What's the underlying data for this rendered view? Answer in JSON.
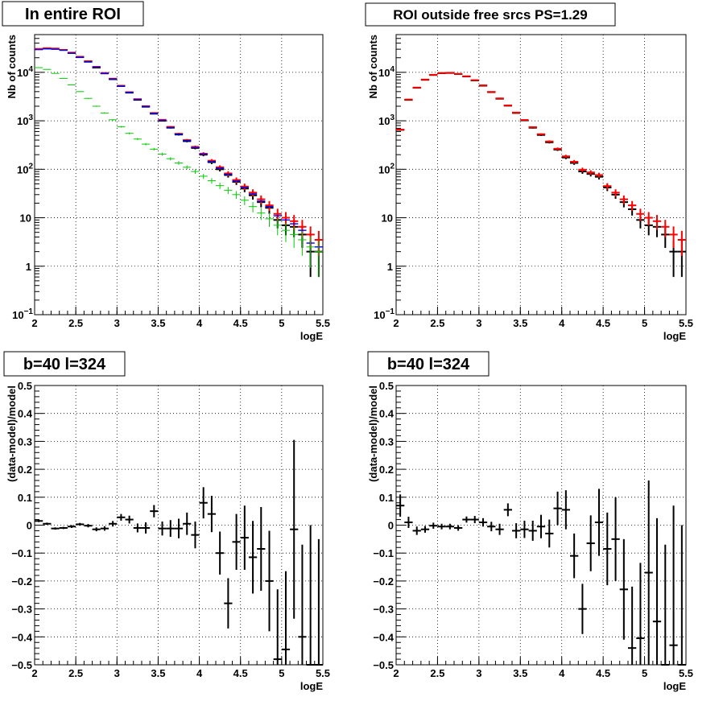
{
  "chart_data": [
    {
      "type": "scatter",
      "title": "In entire ROI",
      "xlabel": "logE",
      "ylabel": "Nb of counts",
      "xlim": [
        2,
        5.5
      ],
      "ylim": [
        0.1,
        60000
      ],
      "yscale": "log",
      "grid": true,
      "x_bin_width": 0.1,
      "series": [
        {
          "color": "#000000",
          "x": [
            2.05,
            2.15,
            2.25,
            2.35,
            2.45,
            2.55,
            2.65,
            2.75,
            2.85,
            2.95,
            3.05,
            3.15,
            3.25,
            3.35,
            3.45,
            3.55,
            3.65,
            3.75,
            3.85,
            3.95,
            4.05,
            4.15,
            4.25,
            4.35,
            4.45,
            4.55,
            4.65,
            4.75,
            4.85,
            4.95,
            5.05,
            5.15,
            5.25,
            5.35,
            5.45
          ],
          "y": [
            30000,
            31000,
            30500,
            29000,
            25000,
            20500,
            16500,
            12500,
            9500,
            7200,
            5200,
            3800,
            2700,
            1950,
            1400,
            1000,
            720,
            520,
            380,
            275,
            200,
            140,
            100,
            76,
            55,
            40,
            29,
            21,
            16,
            9,
            7,
            6.5,
            4.5,
            2,
            2
          ],
          "yerr_frac": [
            0.006,
            0.006,
            0.006,
            0.006,
            0.006,
            0.007,
            0.008,
            0.009,
            0.01,
            0.012,
            0.014,
            0.016,
            0.019,
            0.023,
            0.027,
            0.032,
            0.037,
            0.044,
            0.051,
            0.06,
            0.071,
            0.085,
            0.1,
            0.115,
            0.135,
            0.158,
            0.186,
            0.218,
            0.25,
            0.33,
            0.38,
            0.39,
            0.47,
            0.7,
            0.7
          ]
        },
        {
          "color": "#ff0000",
          "x": [
            2.05,
            2.15,
            2.25,
            2.35,
            2.45,
            2.55,
            2.65,
            2.75,
            2.85,
            2.95,
            3.05,
            3.15,
            3.25,
            3.35,
            3.45,
            3.55,
            3.65,
            3.75,
            3.85,
            3.95,
            4.05,
            4.15,
            4.25,
            4.35,
            4.45,
            4.55,
            4.65,
            4.75,
            4.85,
            4.95,
            5.05,
            5.15,
            5.25,
            5.35,
            5.45
          ],
          "y": [
            30500,
            31500,
            31000,
            29000,
            25500,
            21000,
            17000,
            13000,
            9700,
            7400,
            5300,
            3900,
            2800,
            2000,
            1450,
            1050,
            750,
            540,
            400,
            290,
            210,
            150,
            110,
            82,
            60,
            44,
            33,
            24,
            18,
            12,
            10,
            8.5,
            6.5,
            4.5,
            3.5
          ],
          "yerr_frac": [
            0.006,
            0.006,
            0.006,
            0.006,
            0.006,
            0.007,
            0.008,
            0.009,
            0.01,
            0.012,
            0.014,
            0.016,
            0.019,
            0.022,
            0.026,
            0.031,
            0.036,
            0.043,
            0.05,
            0.059,
            0.069,
            0.082,
            0.095,
            0.11,
            0.13,
            0.15,
            0.17,
            0.2,
            0.23,
            0.28,
            0.31,
            0.34,
            0.39,
            0.47,
            0.53
          ]
        },
        {
          "color": "#0000ff",
          "x": [
            2.05,
            2.15,
            2.25,
            2.35,
            2.45,
            2.55,
            2.65,
            2.75,
            2.85,
            2.95,
            3.05,
            3.15,
            3.25,
            3.35,
            3.45,
            3.55,
            3.65,
            3.75,
            3.85,
            3.95,
            4.05,
            4.15,
            4.25,
            4.35,
            4.45,
            4.55,
            4.65,
            4.75,
            4.85,
            4.95,
            5.05,
            5.15,
            5.25,
            5.35,
            5.45
          ],
          "y": [
            29500,
            30500,
            30000,
            28500,
            25000,
            20500,
            16500,
            12800,
            9500,
            7300,
            5200,
            3850,
            2750,
            1980,
            1420,
            1020,
            730,
            530,
            390,
            280,
            205,
            145,
            105,
            79,
            57,
            42,
            31,
            22,
            17,
            11,
            9,
            7.5,
            5.5,
            3,
            2.5
          ],
          "yerr_frac": [
            0,
            0,
            0,
            0,
            0,
            0,
            0,
            0,
            0,
            0,
            0,
            0,
            0,
            0,
            0,
            0,
            0,
            0,
            0,
            0,
            0,
            0,
            0,
            0,
            0,
            0,
            0,
            0,
            0,
            0,
            0,
            0,
            0,
            0,
            0
          ]
        },
        {
          "color": "#00cc00",
          "x": [
            2.05,
            2.15,
            2.25,
            2.35,
            2.45,
            2.55,
            2.65,
            2.75,
            2.85,
            2.95,
            3.05,
            3.15,
            3.25,
            3.35,
            3.45,
            3.55,
            3.65,
            3.75,
            3.85,
            3.95,
            4.05,
            4.15,
            4.25,
            4.35,
            4.45,
            4.55,
            4.65,
            4.75,
            4.85,
            4.95,
            5.05,
            5.15,
            5.25,
            5.35,
            5.45
          ],
          "y": [
            12500,
            11500,
            9500,
            7500,
            5500,
            4000,
            2900,
            2000,
            1450,
            1050,
            750,
            550,
            420,
            330,
            260,
            205,
            165,
            135,
            110,
            90,
            72,
            58,
            46,
            37,
            30,
            23,
            17,
            12.5,
            9.5,
            7,
            5.5,
            4.5,
            3.5,
            2.5,
            2
          ],
          "yerr_frac": [
            0.01,
            0.01,
            0.01,
            0.012,
            0.014,
            0.017,
            0.02,
            0.024,
            0.028,
            0.033,
            0.038,
            0.044,
            0.05,
            0.056,
            0.062,
            0.07,
            0.078,
            0.086,
            0.095,
            0.105,
            0.118,
            0.13,
            0.147,
            0.165,
            0.18,
            0.21,
            0.24,
            0.28,
            0.32,
            0.38,
            0.43,
            0.47,
            0.53,
            0.63,
            0.7
          ]
        }
      ]
    },
    {
      "type": "scatter",
      "title": "ROI outside free srcs PS=1.29",
      "xlabel": "logE",
      "ylabel": "Nb of counts",
      "xlim": [
        2,
        5.5
      ],
      "ylim": [
        0.1,
        60000
      ],
      "yscale": "log",
      "grid": true,
      "x_bin_width": 0.1,
      "series": [
        {
          "color": "#000000",
          "x": [
            2.05,
            2.15,
            2.25,
            2.35,
            2.45,
            2.55,
            2.65,
            2.75,
            2.85,
            2.95,
            3.05,
            3.15,
            3.25,
            3.35,
            3.45,
            3.55,
            3.65,
            3.75,
            3.85,
            3.95,
            4.05,
            4.15,
            4.25,
            4.35,
            4.45,
            4.55,
            4.65,
            4.75,
            4.85,
            4.95,
            5.05,
            5.15,
            5.25,
            5.35,
            5.45
          ],
          "y": [
            650,
            2700,
            4800,
            7000,
            8800,
            9600,
            9700,
            9200,
            8200,
            6800,
            5300,
            3900,
            2850,
            2050,
            1450,
            1020,
            720,
            510,
            360,
            255,
            175,
            135,
            90,
            80,
            70,
            42,
            30,
            21,
            15,
            9,
            7,
            6.5,
            4.5,
            2,
            2
          ],
          "yerr_frac": [
            0.04,
            0.02,
            0.015,
            0.012,
            0.011,
            0.01,
            0.01,
            0.01,
            0.011,
            0.012,
            0.014,
            0.016,
            0.019,
            0.022,
            0.026,
            0.031,
            0.037,
            0.044,
            0.053,
            0.063,
            0.076,
            0.086,
            0.105,
            0.112,
            0.12,
            0.155,
            0.18,
            0.22,
            0.26,
            0.33,
            0.38,
            0.39,
            0.47,
            0.7,
            0.7
          ]
        },
        {
          "color": "#ff0000",
          "x": [
            2.05,
            2.15,
            2.25,
            2.35,
            2.45,
            2.55,
            2.65,
            2.75,
            2.85,
            2.95,
            3.05,
            3.15,
            3.25,
            3.35,
            3.45,
            3.55,
            3.65,
            3.75,
            3.85,
            3.95,
            4.05,
            4.15,
            4.25,
            4.35,
            4.45,
            4.55,
            4.65,
            4.75,
            4.85,
            4.95,
            5.05,
            5.15,
            5.25,
            5.35,
            5.45
          ],
          "y": [
            660,
            2750,
            4850,
            7100,
            8900,
            9700,
            9800,
            9300,
            8300,
            6900,
            5400,
            3950,
            2900,
            2080,
            1480,
            1040,
            740,
            530,
            375,
            265,
            185,
            143,
            98,
            86,
            76,
            45,
            33,
            24,
            18,
            12,
            10,
            8.5,
            6.5,
            4.5,
            3.5
          ],
          "yerr_frac": [
            0.04,
            0.02,
            0.015,
            0.012,
            0.011,
            0.01,
            0.01,
            0.01,
            0.011,
            0.012,
            0.014,
            0.016,
            0.019,
            0.022,
            0.026,
            0.031,
            0.037,
            0.043,
            0.052,
            0.061,
            0.074,
            0.084,
            0.1,
            0.108,
            0.115,
            0.15,
            0.17,
            0.2,
            0.23,
            0.28,
            0.31,
            0.34,
            0.39,
            0.47,
            0.53
          ]
        }
      ]
    },
    {
      "type": "scatter",
      "title": "b=40 l=324",
      "xlabel": "logE",
      "ylabel": "(data-model)/model",
      "xlim": [
        2,
        5.5
      ],
      "ylim": [
        -0.5,
        0.5
      ],
      "yscale": "linear",
      "grid": true,
      "x_bin_width": 0.1,
      "series": [
        {
          "color": "#000000",
          "x": [
            2.05,
            2.15,
            2.25,
            2.35,
            2.45,
            2.55,
            2.65,
            2.75,
            2.85,
            2.95,
            3.05,
            3.15,
            3.25,
            3.35,
            3.45,
            3.55,
            3.65,
            3.75,
            3.85,
            3.95,
            4.05,
            4.15,
            4.25,
            4.35,
            4.45,
            4.55,
            4.65,
            4.75,
            4.85,
            4.95,
            5.05,
            5.15,
            5.25,
            5.35,
            5.45
          ],
          "y": [
            0.015,
            0.005,
            -0.012,
            -0.01,
            -0.005,
            0.003,
            -0.002,
            -0.015,
            -0.012,
            0.005,
            0.028,
            0.02,
            -0.01,
            -0.01,
            0.05,
            -0.012,
            -0.012,
            -0.012,
            0.005,
            -0.035,
            0.08,
            0.04,
            -0.1,
            -0.28,
            -0.06,
            -0.045,
            -0.115,
            -0.085,
            -0.2,
            -0.48,
            -0.445,
            -0.015,
            -0.4,
            -0.5,
            -0.5
          ],
          "yerr": [
            0.004,
            0.004,
            0.004,
            0.004,
            0.005,
            0.005,
            0.006,
            0.007,
            0.008,
            0.01,
            0.012,
            0.014,
            0.016,
            0.02,
            0.022,
            0.025,
            0.03,
            0.035,
            0.04,
            0.048,
            0.056,
            0.065,
            0.077,
            0.09,
            0.1,
            0.115,
            0.13,
            0.15,
            0.18,
            0.25,
            0.28,
            0.32,
            0.33,
            0.5,
            0.45
          ]
        }
      ]
    },
    {
      "type": "scatter",
      "title": "b=40 l=324",
      "xlabel": "logE",
      "ylabel": "(data-model)/model",
      "xlim": [
        2,
        5.5
      ],
      "ylim": [
        -0.5,
        0.5
      ],
      "yscale": "linear",
      "grid": true,
      "x_bin_width": 0.1,
      "series": [
        {
          "color": "#000000",
          "x": [
            2.05,
            2.15,
            2.25,
            2.35,
            2.45,
            2.55,
            2.65,
            2.75,
            2.85,
            2.95,
            3.05,
            3.15,
            3.25,
            3.35,
            3.45,
            3.55,
            3.65,
            3.75,
            3.85,
            3.95,
            4.05,
            4.15,
            4.25,
            4.35,
            4.45,
            4.55,
            4.65,
            4.75,
            4.85,
            4.95,
            5.05,
            5.15,
            5.25,
            5.35,
            5.45
          ],
          "y": [
            0.07,
            0.01,
            -0.02,
            -0.015,
            -0.002,
            -0.005,
            -0.005,
            -0.01,
            0.02,
            0.02,
            0.01,
            -0.005,
            -0.015,
            0.055,
            -0.02,
            -0.015,
            -0.02,
            -0.005,
            -0.03,
            0.06,
            0.055,
            -0.11,
            -0.3,
            -0.065,
            0.01,
            -0.085,
            -0.05,
            -0.23,
            -0.44,
            -0.405,
            -0.17,
            -0.345,
            -0.5,
            -0.43,
            -0.5
          ],
          "yerr": [
            0.04,
            0.02,
            0.015,
            0.012,
            0.011,
            0.01,
            0.01,
            0.01,
            0.011,
            0.013,
            0.015,
            0.017,
            0.02,
            0.023,
            0.027,
            0.031,
            0.036,
            0.042,
            0.05,
            0.06,
            0.07,
            0.08,
            0.09,
            0.1,
            0.12,
            0.13,
            0.15,
            0.18,
            0.22,
            0.27,
            0.33,
            0.37,
            0.43,
            0.5,
            0.5
          ]
        }
      ]
    }
  ]
}
